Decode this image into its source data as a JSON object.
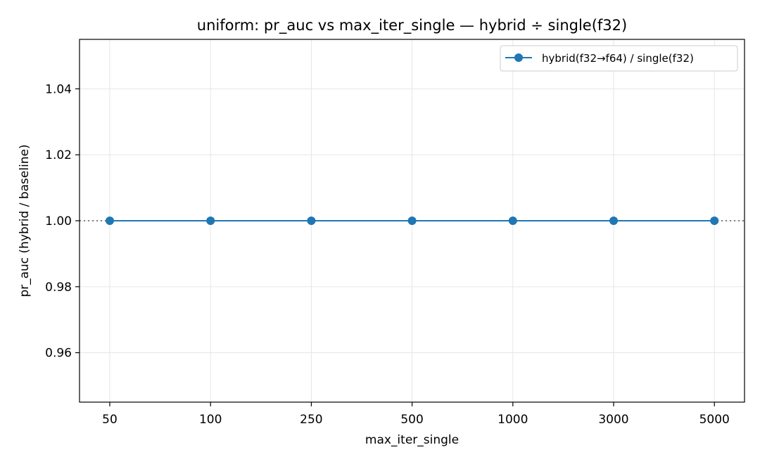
{
  "chart_data": {
    "type": "line",
    "title": "uniform: pr_auc vs max_iter_single — hybrid ÷ single(f32)",
    "xlabel": "max_iter_single",
    "ylabel": "pr_auc (hybrid / baseline)",
    "categories": [
      "50",
      "100",
      "250",
      "500",
      "1000",
      "3000",
      "5000"
    ],
    "series": [
      {
        "name": "hybrid(f32→f64) / single(f32)",
        "values": [
          1.0,
          1.0,
          1.0,
          1.0,
          1.0,
          1.0,
          1.0
        ],
        "color": "#1f77b4",
        "marker": "circle"
      }
    ],
    "ylim": [
      0.945,
      1.055
    ],
    "yticks": [
      0.96,
      0.98,
      1.0,
      1.02,
      1.04
    ],
    "ytick_labels": [
      "0.96",
      "0.98",
      "1.00",
      "1.02",
      "1.04"
    ],
    "reference_line": {
      "y": 1.0,
      "style": "dotted",
      "color": "#808080"
    },
    "grid": true,
    "legend_position": "top-right"
  }
}
